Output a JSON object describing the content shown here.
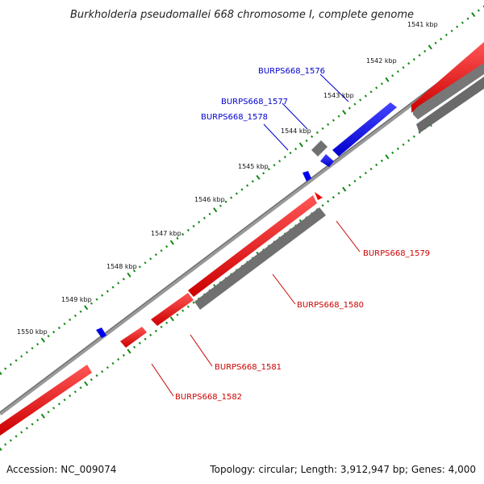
{
  "title": "Burkholderia pseudomallei 668 chromosome I, complete genome",
  "footer": {
    "accession": "Accession: NC_009074",
    "summary": "Topology: circular; Length: 3,912,947 bp; Genes: 4,000"
  },
  "colors": {
    "forward_gene": "#0000ee",
    "reverse_gene": "#ee0000",
    "gene_shadow": "#777777",
    "backbone": "#888888",
    "tick": "#118811",
    "label_forward": "#0000cc",
    "label_reverse": "#cc0000"
  },
  "tick_labels": [
    "1541 kbp",
    "1542 kbp",
    "1543 kbp",
    "1544 kbp",
    "1545 kbp",
    "1546 kbp",
    "1547 kbp",
    "1548 kbp",
    "1549 kbp",
    "1550 kbp"
  ],
  "genes": [
    {
      "id": "BURPS668_1576",
      "strand": "forward"
    },
    {
      "id": "BURPS668_1577",
      "strand": "forward"
    },
    {
      "id": "BURPS668_1578",
      "strand": "forward"
    },
    {
      "id": "BURPS668_1579",
      "strand": "reverse"
    },
    {
      "id": "BURPS668_1580",
      "strand": "reverse"
    },
    {
      "id": "BURPS668_1581",
      "strand": "reverse"
    },
    {
      "id": "BURPS668_1582",
      "strand": "reverse"
    }
  ]
}
